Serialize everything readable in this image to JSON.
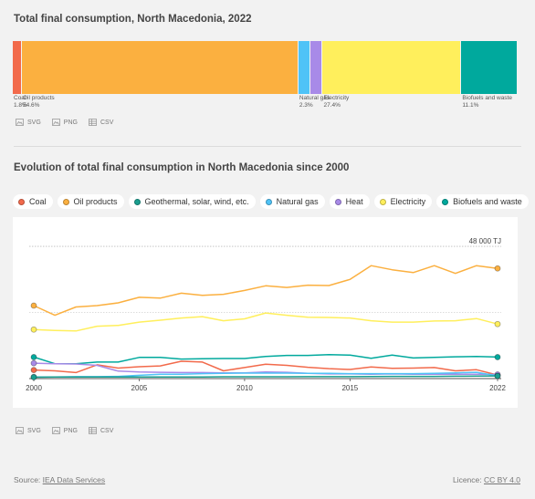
{
  "bar_chart": {
    "title": "Total final consumption, North Macedonia, 2022",
    "segments": [
      {
        "name": "Coal",
        "share": 1.8,
        "share_label": "1.8%",
        "color": "#f26a4b"
      },
      {
        "name": "Oil products",
        "share": 54.6,
        "share_label": "54.6%",
        "color": "#fbb040"
      },
      {
        "name": "Natural gas",
        "share": 2.3,
        "share_label": "2.3%",
        "color": "#4fc3f7"
      },
      {
        "name": "Heat",
        "share": 2.5,
        "share_label": "",
        "color": "#a88ae8"
      },
      {
        "name": "Electricity",
        "share": 27.4,
        "share_label": "27.4%",
        "color": "#ffef5c"
      },
      {
        "name": "Biofuels and waste",
        "share": 11.1,
        "share_label": "11.1%",
        "color": "#00a99d"
      }
    ]
  },
  "exports": [
    {
      "label": "SVG",
      "icon": "image-icon"
    },
    {
      "label": "PNG",
      "icon": "image-icon"
    },
    {
      "label": "CSV",
      "icon": "table-icon"
    }
  ],
  "line_chart": {
    "title": "Evolution of total final consumption in North Macedonia since 2000",
    "legend": [
      {
        "name": "Coal",
        "color": "#f26a4b"
      },
      {
        "name": "Oil products",
        "color": "#fbb040"
      },
      {
        "name": "Geothermal, solar, wind, etc.",
        "color": "#1a9e8f"
      },
      {
        "name": "Natural gas",
        "color": "#4fc3f7"
      },
      {
        "name": "Heat",
        "color": "#a88ae8"
      },
      {
        "name": "Electricity",
        "color": "#ffef5c"
      },
      {
        "name": "Biofuels and waste",
        "color": "#00a99d"
      }
    ]
  },
  "chart_data": {
    "type": "line",
    "x": [
      2000,
      2001,
      2002,
      2003,
      2004,
      2005,
      2006,
      2007,
      2008,
      2009,
      2010,
      2011,
      2012,
      2013,
      2014,
      2015,
      2016,
      2017,
      2018,
      2019,
      2020,
      2021,
      2022
    ],
    "xticks": [
      2000,
      2005,
      2010,
      2015,
      2022
    ],
    "ylim": [
      0,
      52000
    ],
    "gridline_value": 48000,
    "gridline_label": "48 000 TJ",
    "series": [
      {
        "name": "Oil products",
        "color": "#fbb040",
        "values": [
          26500,
          23000,
          26000,
          26500,
          27500,
          29500,
          29200,
          31000,
          30200,
          30600,
          32000,
          33700,
          33100,
          33900,
          33800,
          36000,
          41000,
          39500,
          38500,
          41000,
          38200,
          41000,
          40000
        ]
      },
      {
        "name": "Electricity",
        "color": "#ffef5c",
        "values": [
          17800,
          17500,
          17300,
          19000,
          19300,
          20500,
          21200,
          22000,
          22500,
          21000,
          21700,
          23800,
          23000,
          22300,
          22200,
          22000,
          21000,
          20500,
          20500,
          20900,
          21000,
          21800,
          19800
        ]
      },
      {
        "name": "Biofuels and waste",
        "color": "#00a99d",
        "values": [
          7800,
          5400,
          5400,
          6000,
          6000,
          7700,
          7700,
          7100,
          7200,
          7300,
          7300,
          8000,
          8400,
          8400,
          8700,
          8500,
          7400,
          8500,
          7500,
          7700,
          7900,
          8000,
          7800
        ]
      },
      {
        "name": "Coal",
        "color": "#f26a4b",
        "values": [
          3100,
          2800,
          2200,
          5000,
          3800,
          4300,
          4600,
          6300,
          6000,
          2800,
          4000,
          5200,
          4800,
          4100,
          3600,
          3300,
          4200,
          3700,
          3800,
          4000,
          2800,
          3200,
          1300
        ]
      },
      {
        "name": "Heat",
        "color": "#a88ae8",
        "values": [
          5600,
          5400,
          5300,
          4800,
          2700,
          2400,
          2300,
          2200,
          2200,
          2100,
          2100,
          2400,
          2300,
          1900,
          1700,
          1700,
          1600,
          1700,
          1600,
          1600,
          1600,
          1600,
          1500
        ]
      },
      {
        "name": "Natural gas",
        "color": "#4fc3f7",
        "values": [
          600,
          550,
          700,
          700,
          800,
          1200,
          1600,
          1600,
          1800,
          1900,
          2000,
          2000,
          2000,
          1900,
          1900,
          1800,
          1800,
          1800,
          1800,
          1900,
          2100,
          2300,
          1000
        ]
      },
      {
        "name": "Geothermal, solar, wind, etc.",
        "color": "#1a9e8f",
        "values": [
          500,
          550,
          600,
          600,
          600,
          600,
          600,
          600,
          600,
          650,
          650,
          650,
          650,
          700,
          700,
          700,
          750,
          800,
          800,
          800,
          850,
          900,
          950
        ]
      }
    ]
  },
  "footer": {
    "source_prefix": "Source: ",
    "source_link": "IEA Data Services",
    "license_prefix": "Licence: ",
    "license_link": "CC BY 4.0"
  }
}
